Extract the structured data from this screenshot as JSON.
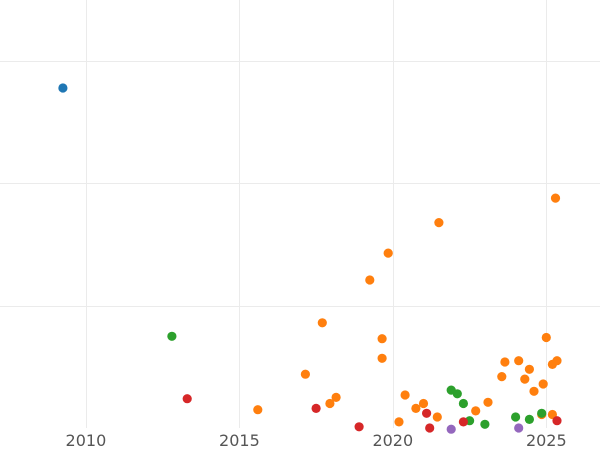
{
  "chart_data": {
    "type": "scatter",
    "title": "",
    "xlabel": "",
    "ylabel": "",
    "grid": true,
    "legend": "none",
    "xlim": [
      2007.2,
      2026.75
    ],
    "ylim": [
      0.0,
      3.5
    ],
    "x_ticks": [
      2010,
      2015,
      2020,
      2025
    ],
    "x_tick_labels": [
      "2010",
      "2015",
      "2020",
      "2025"
    ],
    "y_ticks": [
      1,
      2,
      3
    ],
    "colors": {
      "blue": "#1f77b4",
      "orange": "#ff7f0e",
      "green": "#2ca02c",
      "red": "#d62728",
      "purple": "#9467bd"
    },
    "points": [
      {
        "x": 2009.25,
        "y": 2.78,
        "color": "blue"
      },
      {
        "x": 2015.6,
        "y": 0.15,
        "color": "orange"
      },
      {
        "x": 2017.15,
        "y": 0.44,
        "color": "orange"
      },
      {
        "x": 2017.7,
        "y": 0.86,
        "color": "orange"
      },
      {
        "x": 2017.95,
        "y": 0.2,
        "color": "orange"
      },
      {
        "x": 2018.15,
        "y": 0.25,
        "color": "orange"
      },
      {
        "x": 2019.25,
        "y": 1.21,
        "color": "orange"
      },
      {
        "x": 2019.65,
        "y": 0.57,
        "color": "orange"
      },
      {
        "x": 2019.65,
        "y": 0.73,
        "color": "orange"
      },
      {
        "x": 2019.85,
        "y": 1.43,
        "color": "orange"
      },
      {
        "x": 2020.2,
        "y": 0.05,
        "color": "orange"
      },
      {
        "x": 2020.4,
        "y": 0.27,
        "color": "orange"
      },
      {
        "x": 2020.75,
        "y": 0.16,
        "color": "orange"
      },
      {
        "x": 2021.0,
        "y": 0.2,
        "color": "orange"
      },
      {
        "x": 2021.45,
        "y": 0.09,
        "color": "orange"
      },
      {
        "x": 2021.5,
        "y": 1.68,
        "color": "orange"
      },
      {
        "x": 2022.7,
        "y": 0.14,
        "color": "orange"
      },
      {
        "x": 2023.1,
        "y": 0.21,
        "color": "orange"
      },
      {
        "x": 2023.55,
        "y": 0.42,
        "color": "orange"
      },
      {
        "x": 2023.65,
        "y": 0.54,
        "color": "orange"
      },
      {
        "x": 2024.1,
        "y": 0.55,
        "color": "orange"
      },
      {
        "x": 2024.3,
        "y": 0.4,
        "color": "orange"
      },
      {
        "x": 2024.45,
        "y": 0.48,
        "color": "orange"
      },
      {
        "x": 2024.6,
        "y": 0.3,
        "color": "orange"
      },
      {
        "x": 2024.85,
        "y": 0.11,
        "color": "orange"
      },
      {
        "x": 2024.9,
        "y": 0.36,
        "color": "orange"
      },
      {
        "x": 2025.0,
        "y": 0.74,
        "color": "orange"
      },
      {
        "x": 2025.2,
        "y": 0.11,
        "color": "orange"
      },
      {
        "x": 2025.2,
        "y": 0.52,
        "color": "orange"
      },
      {
        "x": 2025.3,
        "y": 1.88,
        "color": "orange"
      },
      {
        "x": 2025.35,
        "y": 0.55,
        "color": "orange"
      },
      {
        "x": 2012.8,
        "y": 0.75,
        "color": "green"
      },
      {
        "x": 2021.9,
        "y": 0.31,
        "color": "green"
      },
      {
        "x": 2022.1,
        "y": 0.28,
        "color": "green"
      },
      {
        "x": 2022.3,
        "y": 0.2,
        "color": "green"
      },
      {
        "x": 2022.5,
        "y": 0.06,
        "color": "green"
      },
      {
        "x": 2023.0,
        "y": 0.03,
        "color": "green"
      },
      {
        "x": 2024.0,
        "y": 0.09,
        "color": "green"
      },
      {
        "x": 2024.45,
        "y": 0.07,
        "color": "green"
      },
      {
        "x": 2024.85,
        "y": 0.12,
        "color": "green"
      },
      {
        "x": 2013.3,
        "y": 0.24,
        "color": "red"
      },
      {
        "x": 2017.5,
        "y": 0.16,
        "color": "red"
      },
      {
        "x": 2018.9,
        "y": 0.01,
        "color": "red"
      },
      {
        "x": 2021.1,
        "y": 0.12,
        "color": "red"
      },
      {
        "x": 2021.2,
        "y": 0.0,
        "color": "red"
      },
      {
        "x": 2022.3,
        "y": 0.05,
        "color": "red"
      },
      {
        "x": 2025.35,
        "y": 0.06,
        "color": "red"
      },
      {
        "x": 2021.9,
        "y": -0.01,
        "color": "purple"
      },
      {
        "x": 2024.1,
        "y": 0.0,
        "color": "purple"
      }
    ]
  }
}
